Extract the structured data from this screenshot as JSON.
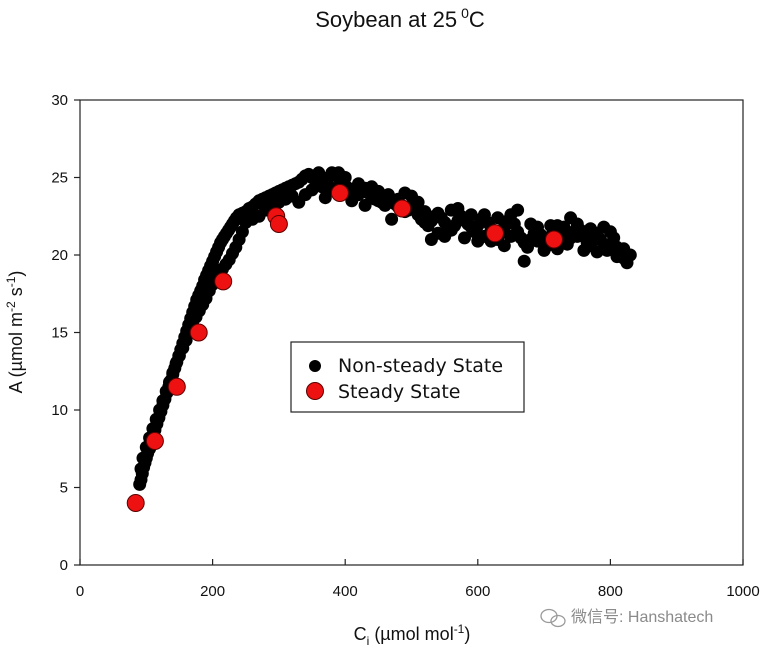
{
  "chart_data": {
    "type": "scatter",
    "title": "Soybean at 25",
    "title_superscript": "0",
    "title_suffix": "C",
    "xlabel": {
      "main": "C",
      "subscript": "i",
      "unit_prefix": " (µmol mol",
      "unit_superscript": "-1",
      "unit_suffix": ")"
    },
    "ylabel": {
      "prefix": "A (µmol m",
      "sup1": "-2",
      "mid": " s",
      "sup2": "-1",
      "suffix": ")"
    },
    "xlim": [
      0,
      1000
    ],
    "ylim": [
      0,
      30
    ],
    "xticks": [
      "0",
      "200",
      "400",
      "600",
      "800",
      "1000"
    ],
    "yticks": [
      "0",
      "5",
      "10",
      "15",
      "20",
      "25",
      "30"
    ],
    "grid": false,
    "legend_position": "center",
    "series": [
      {
        "name": "Non-steady State",
        "color": "#000000",
        "marker": "circle-small",
        "points": [
          [
            90,
            5.2
          ],
          [
            92,
            5.5
          ],
          [
            94,
            5.9
          ],
          [
            96,
            6.3
          ],
          [
            98,
            6.6
          ],
          [
            100,
            6.9
          ],
          [
            102,
            7.2
          ],
          [
            105,
            7.5
          ],
          [
            108,
            7.9
          ],
          [
            110,
            8.3
          ],
          [
            113,
            8.7
          ],
          [
            116,
            9.1
          ],
          [
            119,
            9.5
          ],
          [
            122,
            9.9
          ],
          [
            125,
            10.3
          ],
          [
            128,
            10.7
          ],
          [
            131,
            11.1
          ],
          [
            134,
            11.5
          ],
          [
            137,
            11.9
          ],
          [
            140,
            12.3
          ],
          [
            143,
            12.7
          ],
          [
            146,
            13.1
          ],
          [
            149,
            13.5
          ],
          [
            152,
            13.9
          ],
          [
            155,
            14.3
          ],
          [
            158,
            14.7
          ],
          [
            161,
            15.1
          ],
          [
            164,
            15.5
          ],
          [
            167,
            15.9
          ],
          [
            170,
            16.3
          ],
          [
            173,
            16.7
          ],
          [
            176,
            17.1
          ],
          [
            179,
            17.4
          ],
          [
            182,
            17.7
          ],
          [
            185,
            18.0
          ],
          [
            188,
            18.4
          ],
          [
            191,
            18.7
          ],
          [
            194,
            19.0
          ],
          [
            197,
            19.3
          ],
          [
            200,
            19.6
          ],
          [
            203,
            19.9
          ],
          [
            206,
            20.2
          ],
          [
            209,
            20.5
          ],
          [
            212,
            20.8
          ],
          [
            215,
            21.0
          ],
          [
            218,
            21.2
          ],
          [
            221,
            21.4
          ],
          [
            224,
            21.6
          ],
          [
            227,
            21.8
          ],
          [
            230,
            22.0
          ],
          [
            233,
            22.2
          ],
          [
            236,
            22.4
          ],
          [
            240,
            22.6
          ],
          [
            245,
            22.7
          ],
          [
            250,
            22.8
          ],
          [
            255,
            23.0
          ],
          [
            260,
            23.1
          ],
          [
            265,
            23.3
          ],
          [
            270,
            23.5
          ],
          [
            275,
            23.6
          ],
          [
            280,
            23.7
          ],
          [
            285,
            23.8
          ],
          [
            290,
            23.9
          ],
          [
            295,
            24.0
          ],
          [
            300,
            24.1
          ],
          [
            305,
            24.2
          ],
          [
            310,
            24.3
          ],
          [
            315,
            24.4
          ],
          [
            320,
            24.5
          ],
          [
            325,
            24.6
          ],
          [
            330,
            24.7
          ],
          [
            335,
            24.9
          ],
          [
            340,
            25.1
          ],
          [
            345,
            25.2
          ],
          [
            350,
            25.0
          ],
          [
            355,
            24.8
          ],
          [
            360,
            24.6
          ],
          [
            365,
            24.4
          ],
          [
            370,
            24.7
          ],
          [
            375,
            25.0
          ],
          [
            380,
            25.3
          ],
          [
            385,
            25.2
          ],
          [
            390,
            25.0
          ],
          [
            395,
            24.7
          ],
          [
            400,
            24.5
          ],
          [
            405,
            24.3
          ],
          [
            410,
            24.2
          ],
          [
            415,
            24.0
          ],
          [
            420,
            23.9
          ],
          [
            425,
            24.1
          ],
          [
            430,
            24.3
          ],
          [
            435,
            24.0
          ],
          [
            440,
            23.8
          ],
          [
            445,
            23.6
          ],
          [
            450,
            23.5
          ],
          [
            455,
            23.4
          ],
          [
            460,
            23.7
          ],
          [
            465,
            23.9
          ],
          [
            470,
            23.6
          ],
          [
            475,
            23.3
          ],
          [
            480,
            23.1
          ],
          [
            485,
            23.0
          ],
          [
            490,
            22.8
          ],
          [
            495,
            22.9
          ],
          [
            500,
            23.2
          ],
          [
            505,
            23.0
          ],
          [
            510,
            22.6
          ],
          [
            515,
            22.3
          ],
          [
            520,
            22.1
          ],
          [
            525,
            21.9
          ],
          [
            530,
            22.2
          ],
          [
            535,
            22.5
          ],
          [
            540,
            22.7
          ],
          [
            545,
            22.4
          ],
          [
            550,
            22.1
          ],
          [
            555,
            21.8
          ],
          [
            560,
            21.6
          ],
          [
            565,
            21.9
          ],
          [
            570,
            22.2
          ],
          [
            575,
            22.5
          ],
          [
            580,
            22.3
          ],
          [
            585,
            22.0
          ],
          [
            590,
            21.8
          ],
          [
            595,
            21.5
          ],
          [
            600,
            21.9
          ],
          [
            605,
            22.3
          ],
          [
            610,
            22.6
          ],
          [
            615,
            22.1
          ],
          [
            620,
            21.7
          ],
          [
            625,
            21.3
          ],
          [
            630,
            21.0
          ],
          [
            635,
            21.4
          ],
          [
            640,
            21.8
          ],
          [
            645,
            22.2
          ],
          [
            650,
            22.6
          ],
          [
            655,
            22.0
          ],
          [
            660,
            21.5
          ],
          [
            665,
            21.1
          ],
          [
            670,
            20.8
          ],
          [
            675,
            20.5
          ],
          [
            680,
            21.0
          ],
          [
            685,
            21.4
          ],
          [
            690,
            21.8
          ],
          [
            695,
            21.3
          ],
          [
            700,
            20.9
          ],
          [
            705,
            20.6
          ],
          [
            710,
            21.2
          ],
          [
            715,
            21.6
          ],
          [
            720,
            21.9
          ],
          [
            725,
            21.4
          ],
          [
            730,
            20.9
          ],
          [
            735,
            20.7
          ],
          [
            740,
            21.1
          ],
          [
            745,
            21.5
          ],
          [
            750,
            22.0
          ],
          [
            755,
            21.6
          ],
          [
            760,
            21.2
          ],
          [
            765,
            20.8
          ],
          [
            770,
            20.6
          ],
          [
            775,
            21.0
          ],
          [
            780,
            21.4
          ],
          [
            785,
            21.0
          ],
          [
            790,
            20.6
          ],
          [
            795,
            20.3
          ],
          [
            800,
            20.7
          ],
          [
            805,
            21.1
          ],
          [
            810,
            20.5
          ],
          [
            815,
            20.1
          ],
          [
            820,
            19.8
          ],
          [
            825,
            19.5
          ],
          [
            830,
            20.0
          ],
          [
            820,
            20.4
          ],
          [
            810,
            19.9
          ],
          [
            800,
            21.5
          ],
          [
            790,
            21.8
          ],
          [
            780,
            20.2
          ],
          [
            770,
            21.7
          ],
          [
            760,
            20.3
          ],
          [
            750,
            21.2
          ],
          [
            740,
            22.4
          ],
          [
            730,
            21.8
          ],
          [
            720,
            20.4
          ],
          [
            710,
            21.9
          ],
          [
            700,
            20.3
          ],
          [
            690,
            20.9
          ],
          [
            680,
            22.0
          ],
          [
            670,
            19.6
          ],
          [
            660,
            22.9
          ],
          [
            650,
            21.2
          ],
          [
            640,
            20.6
          ],
          [
            630,
            22.4
          ],
          [
            620,
            20.9
          ],
          [
            610,
            21.2
          ],
          [
            600,
            20.9
          ],
          [
            590,
            22.6
          ],
          [
            580,
            21.1
          ],
          [
            570,
            23.0
          ],
          [
            560,
            22.9
          ],
          [
            550,
            21.2
          ],
          [
            540,
            21.4
          ],
          [
            530,
            21.0
          ],
          [
            520,
            22.8
          ],
          [
            510,
            23.4
          ],
          [
            500,
            23.8
          ],
          [
            490,
            24.0
          ],
          [
            480,
            23.6
          ],
          [
            470,
            22.3
          ],
          [
            460,
            23.2
          ],
          [
            450,
            24.1
          ],
          [
            440,
            24.4
          ],
          [
            430,
            23.2
          ],
          [
            420,
            24.6
          ],
          [
            410,
            23.5
          ],
          [
            400,
            25.0
          ],
          [
            390,
            25.3
          ],
          [
            380,
            24.3
          ],
          [
            370,
            23.7
          ],
          [
            360,
            25.3
          ],
          [
            350,
            24.2
          ],
          [
            340,
            23.9
          ],
          [
            330,
            23.4
          ],
          [
            320,
            23.8
          ],
          [
            310,
            23.6
          ],
          [
            300,
            23.4
          ],
          [
            290,
            23.2
          ],
          [
            280,
            22.9
          ],
          [
            270,
            22.5
          ],
          [
            260,
            22.3
          ],
          [
            250,
            22.1
          ],
          [
            245,
            21.5
          ],
          [
            240,
            21.0
          ],
          [
            235,
            20.5
          ],
          [
            230,
            20.1
          ],
          [
            225,
            19.7
          ],
          [
            220,
            19.4
          ],
          [
            215,
            19.1
          ],
          [
            210,
            18.8
          ],
          [
            205,
            18.4
          ],
          [
            200,
            18.1
          ],
          [
            195,
            17.7
          ],
          [
            190,
            17.2
          ],
          [
            185,
            16.8
          ],
          [
            180,
            16.4
          ],
          [
            175,
            16.0
          ],
          [
            170,
            15.5
          ],
          [
            165,
            15.0
          ],
          [
            160,
            14.5
          ],
          [
            155,
            14.0
          ],
          [
            150,
            13.5
          ],
          [
            145,
            13.0
          ],
          [
            140,
            12.4
          ],
          [
            135,
            11.8
          ],
          [
            130,
            11.2
          ],
          [
            125,
            10.6
          ],
          [
            120,
            10.0
          ],
          [
            115,
            9.4
          ],
          [
            110,
            8.8
          ],
          [
            105,
            8.2
          ],
          [
            100,
            7.6
          ],
          [
            95,
            6.9
          ],
          [
            92,
            6.2
          ]
        ]
      },
      {
        "name": "Steady State",
        "color": "#ee1111",
        "marker": "circle-large",
        "points": [
          [
            84,
            4.0
          ],
          [
            113,
            8.0
          ],
          [
            146,
            11.5
          ],
          [
            179,
            15.0
          ],
          [
            216,
            18.3
          ],
          [
            296,
            22.5
          ],
          [
            300,
            22.0
          ],
          [
            392,
            24.0
          ],
          [
            486,
            23.0
          ],
          [
            626,
            21.4
          ],
          [
            715,
            21.0
          ]
        ]
      }
    ]
  },
  "watermark": {
    "icon": "wechat-icon",
    "text": "微信号: Hanshatech"
  }
}
